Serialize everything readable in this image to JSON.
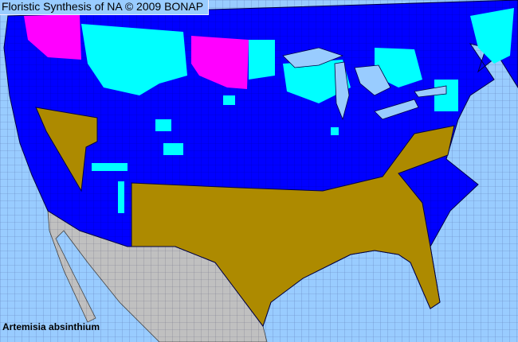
{
  "header": {
    "title": "Floristic Synthesis of NA © 2009 BONAP"
  },
  "map": {
    "species": "Artemisia absinthium",
    "colors": {
      "water": "#99ccff",
      "land_base": "#0000ff",
      "brown_region": "#ad8a00",
      "cyan_region": "#00ffff",
      "magenta_region": "#ff00ff",
      "outside_area": "#c0c0c0",
      "borders": "#000033"
    }
  }
}
